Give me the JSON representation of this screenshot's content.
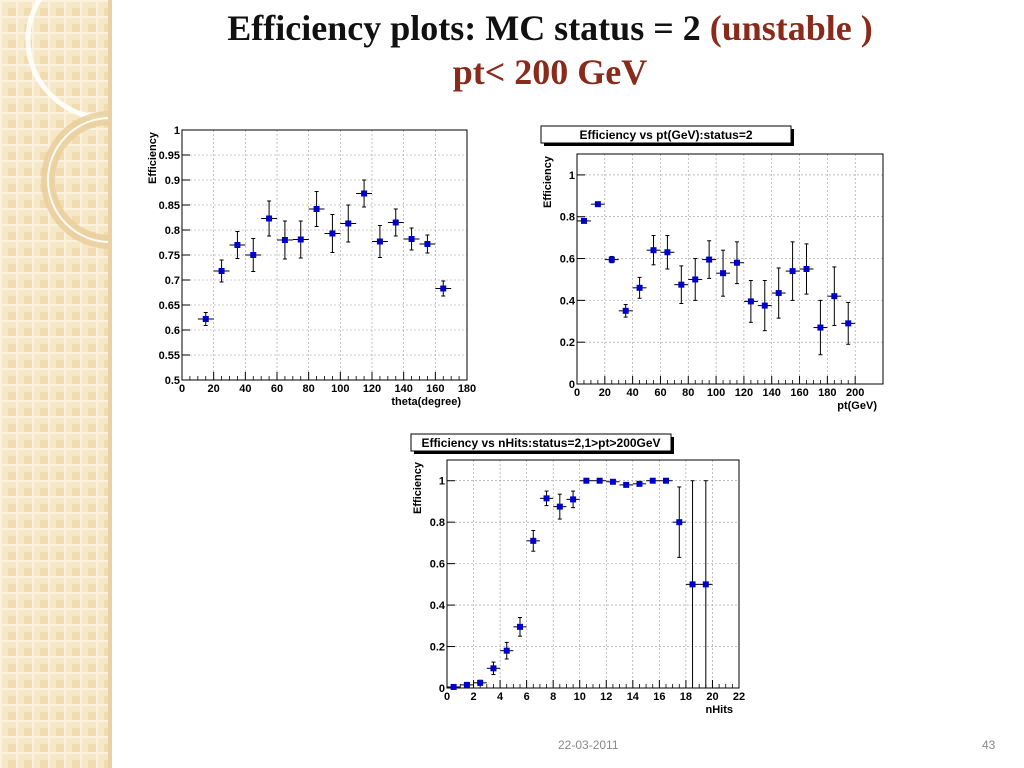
{
  "slide": {
    "title_part1": "Efficiency plots: MC status = 2 ",
    "title_accent1": "(unstable )",
    "title_accent2": "pt< 200 GeV",
    "date": "22-03-2011",
    "page_number": "43",
    "accent_color": "#8a2a1a",
    "marker_color": "#0000cc",
    "sidebar_color": "#f3e0b8"
  },
  "chart_data": [
    {
      "type": "scatter",
      "title": "",
      "xlabel": "theta(degree)",
      "ylabel": "Efficiency",
      "xlim": [
        0,
        180
      ],
      "ylim": [
        0.5,
        1
      ],
      "grid": true,
      "xticks": [
        0,
        20,
        40,
        60,
        80,
        100,
        120,
        140,
        160,
        180
      ],
      "yticks": [
        0.5,
        0.55,
        0.6,
        0.65,
        0.7,
        0.75,
        0.8,
        0.85,
        0.9,
        0.95,
        1
      ],
      "x_err": 5,
      "points": [
        {
          "x": 15,
          "y": 0.622,
          "err": 0.013
        },
        {
          "x": 25,
          "y": 0.718,
          "err": 0.022
        },
        {
          "x": 35,
          "y": 0.77,
          "err": 0.027
        },
        {
          "x": 45,
          "y": 0.75,
          "err": 0.033
        },
        {
          "x": 55,
          "y": 0.823,
          "err": 0.035
        },
        {
          "x": 65,
          "y": 0.78,
          "err": 0.038
        },
        {
          "x": 75,
          "y": 0.781,
          "err": 0.037
        },
        {
          "x": 85,
          "y": 0.842,
          "err": 0.035
        },
        {
          "x": 95,
          "y": 0.793,
          "err": 0.038
        },
        {
          "x": 105,
          "y": 0.813,
          "err": 0.037
        },
        {
          "x": 115,
          "y": 0.873,
          "err": 0.027
        },
        {
          "x": 125,
          "y": 0.777,
          "err": 0.032
        },
        {
          "x": 135,
          "y": 0.815,
          "err": 0.027
        },
        {
          "x": 145,
          "y": 0.782,
          "err": 0.022
        },
        {
          "x": 155,
          "y": 0.772,
          "err": 0.018
        },
        {
          "x": 165,
          "y": 0.683,
          "err": 0.015
        }
      ]
    },
    {
      "type": "scatter",
      "title": "Efficiency vs pt(GeV):status=2",
      "xlabel": "pt(GeV)",
      "ylabel": "Efficiency",
      "xlim": [
        0,
        220
      ],
      "ylim": [
        0,
        1.1
      ],
      "grid": true,
      "xticks": [
        0,
        20,
        40,
        60,
        80,
        100,
        120,
        140,
        160,
        180,
        200
      ],
      "yticks": [
        0,
        0.2,
        0.4,
        0.6,
        0.8,
        1
      ],
      "x_err": 5,
      "points": [
        {
          "x": 5,
          "y": 0.78,
          "err": 0.01
        },
        {
          "x": 15,
          "y": 0.86,
          "err": 0.008
        },
        {
          "x": 25,
          "y": 0.595,
          "err": 0.015
        },
        {
          "x": 35,
          "y": 0.35,
          "err": 0.03
        },
        {
          "x": 45,
          "y": 0.46,
          "err": 0.05
        },
        {
          "x": 55,
          "y": 0.64,
          "err": 0.07
        },
        {
          "x": 65,
          "y": 0.63,
          "err": 0.08
        },
        {
          "x": 75,
          "y": 0.475,
          "err": 0.09
        },
        {
          "x": 85,
          "y": 0.5,
          "err": 0.1
        },
        {
          "x": 95,
          "y": 0.595,
          "err": 0.09
        },
        {
          "x": 105,
          "y": 0.53,
          "err": 0.11
        },
        {
          "x": 115,
          "y": 0.58,
          "err": 0.1
        },
        {
          "x": 125,
          "y": 0.395,
          "err": 0.1
        },
        {
          "x": 135,
          "y": 0.375,
          "err": 0.12
        },
        {
          "x": 145,
          "y": 0.435,
          "err": 0.12
        },
        {
          "x": 155,
          "y": 0.54,
          "err": 0.14
        },
        {
          "x": 165,
          "y": 0.55,
          "err": 0.12
        },
        {
          "x": 175,
          "y": 0.27,
          "err": 0.13
        },
        {
          "x": 185,
          "y": 0.42,
          "err": 0.14
        },
        {
          "x": 195,
          "y": 0.29,
          "err": 0.1
        }
      ]
    },
    {
      "type": "scatter",
      "title": "Efficiency vs nHits:status=2,1>pt>200GeV",
      "xlabel": "nHits",
      "ylabel": "Efficiency",
      "xlim": [
        0,
        22
      ],
      "ylim": [
        0,
        1.1
      ],
      "grid": true,
      "xticks": [
        0,
        2,
        4,
        6,
        8,
        10,
        12,
        14,
        16,
        18,
        20,
        22
      ],
      "yticks": [
        0,
        0.2,
        0.4,
        0.6,
        0.8,
        1
      ],
      "x_err": 0.5,
      "points": [
        {
          "x": 0.5,
          "y": 0.005,
          "err": 0.005
        },
        {
          "x": 1.5,
          "y": 0.015,
          "err": 0.008
        },
        {
          "x": 2.5,
          "y": 0.025,
          "err": 0.012
        },
        {
          "x": 3.5,
          "y": 0.095,
          "err": 0.03
        },
        {
          "x": 4.5,
          "y": 0.18,
          "err": 0.04
        },
        {
          "x": 5.5,
          "y": 0.295,
          "err": 0.045
        },
        {
          "x": 6.5,
          "y": 0.71,
          "err": 0.05
        },
        {
          "x": 7.5,
          "y": 0.915,
          "err": 0.035
        },
        {
          "x": 8.5,
          "y": 0.875,
          "err": 0.06
        },
        {
          "x": 9.5,
          "y": 0.91,
          "err": 0.04
        },
        {
          "x": 10.5,
          "y": 1.0,
          "err": 0.005
        },
        {
          "x": 11.5,
          "y": 1.0,
          "err": 0.005
        },
        {
          "x": 12.5,
          "y": 0.995,
          "err": 0.008
        },
        {
          "x": 13.5,
          "y": 0.98,
          "err": 0.01
        },
        {
          "x": 14.5,
          "y": 0.985,
          "err": 0.01
        },
        {
          "x": 15.5,
          "y": 1.0,
          "err": 0.005
        },
        {
          "x": 16.5,
          "y": 1.0,
          "err": 0.005
        },
        {
          "x": 17.5,
          "y": 0.8,
          "err": 0.17
        },
        {
          "x": 18.5,
          "y": 0.5,
          "err": 0.5
        },
        {
          "x": 19.5,
          "y": 0.5,
          "err": 0.5
        }
      ]
    }
  ]
}
